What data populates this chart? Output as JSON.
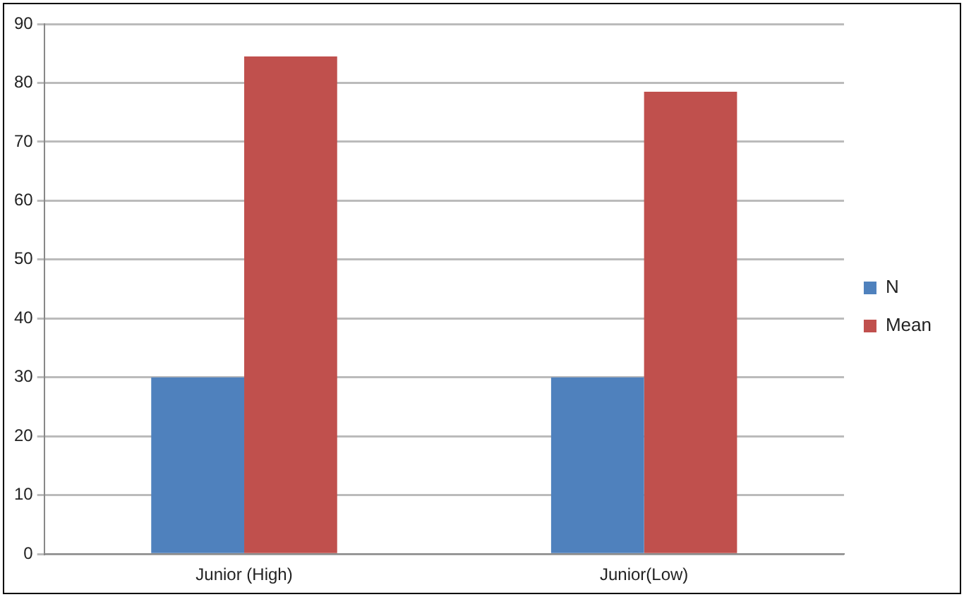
{
  "chart_data": {
    "type": "bar",
    "categories": [
      "Junior (High)",
      "Junior(Low)"
    ],
    "series": [
      {
        "name": "N",
        "color": "#4f81bd",
        "values": [
          30,
          30
        ]
      },
      {
        "name": "Mean",
        "color": "#c0504d",
        "values": [
          84.5,
          78.5
        ]
      }
    ],
    "ylim": [
      0,
      90
    ],
    "yticks": [
      0,
      10,
      20,
      30,
      40,
      50,
      60,
      70,
      80,
      90
    ],
    "grid": "y",
    "legend": "right"
  }
}
